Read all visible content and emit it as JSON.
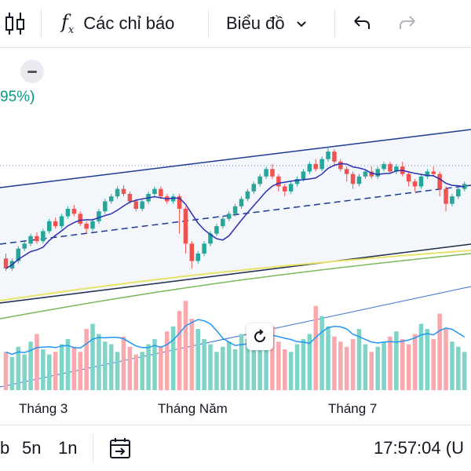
{
  "toolbar": {
    "indicators_label": "Các chỉ báo",
    "chart_type_label": "Biểu đồ"
  },
  "chart": {
    "percent_label": "95%)",
    "x_labels": [
      "Tháng 3",
      "Tháng Năm",
      "Tháng 7"
    ]
  },
  "bottom": {
    "range_partial": "b",
    "range_5y": "5n",
    "range_1y": "1n",
    "clock": "17:57:04 (U"
  },
  "colors": {
    "up": "#26a69a",
    "down": "#ef5350",
    "channel": "#1f3a93",
    "ma": "#2c2fb0",
    "vol_up": "#7fd4c8",
    "vol_down": "#f7a9ae",
    "vol_ma": "#2196f3"
  },
  "chart_data": {
    "type": "candlestick",
    "candles": [
      [
        100,
        92,
        104,
        90
      ],
      [
        92,
        98,
        100,
        90
      ],
      [
        98,
        108,
        110,
        96
      ],
      [
        108,
        112,
        114,
        106
      ],
      [
        112,
        118,
        120,
        110
      ],
      [
        118,
        114,
        121,
        112
      ],
      [
        114,
        122,
        124,
        112
      ],
      [
        122,
        130,
        132,
        120
      ],
      [
        130,
        126,
        133,
        124
      ],
      [
        126,
        134,
        136,
        124
      ],
      [
        134,
        140,
        142,
        132
      ],
      [
        140,
        136,
        143,
        134
      ],
      [
        136,
        128,
        138,
        126
      ],
      [
        128,
        124,
        130,
        120
      ],
      [
        124,
        130,
        132,
        122
      ],
      [
        130,
        138,
        140,
        128
      ],
      [
        138,
        146,
        148,
        136
      ],
      [
        146,
        150,
        152,
        144
      ],
      [
        150,
        156,
        158,
        148
      ],
      [
        156,
        152,
        159,
        150
      ],
      [
        152,
        146,
        154,
        144
      ],
      [
        146,
        140,
        148,
        138
      ],
      [
        140,
        146,
        148,
        138
      ],
      [
        146,
        152,
        154,
        144
      ],
      [
        152,
        156,
        158,
        150
      ],
      [
        156,
        150,
        158,
        148
      ],
      [
        150,
        146,
        152,
        144
      ],
      [
        146,
        150,
        152,
        144
      ],
      [
        150,
        140,
        152,
        120
      ],
      [
        140,
        112,
        142,
        104
      ],
      [
        112,
        98,
        114,
        92
      ],
      [
        98,
        104,
        106,
        96
      ],
      [
        104,
        112,
        114,
        102
      ],
      [
        112,
        120,
        122,
        110
      ],
      [
        120,
        126,
        128,
        118
      ],
      [
        126,
        132,
        134,
        124
      ],
      [
        132,
        136,
        138,
        130
      ],
      [
        136,
        142,
        144,
        134
      ],
      [
        142,
        148,
        150,
        140
      ],
      [
        148,
        154,
        156,
        146
      ],
      [
        154,
        160,
        162,
        152
      ],
      [
        160,
        166,
        168,
        158
      ],
      [
        166,
        172,
        174,
        164
      ],
      [
        172,
        166,
        176,
        164
      ],
      [
        166,
        158,
        168,
        154
      ],
      [
        158,
        154,
        160,
        150
      ],
      [
        154,
        160,
        162,
        152
      ],
      [
        160,
        164,
        166,
        158
      ],
      [
        164,
        170,
        172,
        162
      ],
      [
        170,
        176,
        178,
        168
      ],
      [
        176,
        172,
        180,
        170
      ],
      [
        172,
        180,
        182,
        170
      ],
      [
        180,
        186,
        190,
        178
      ],
      [
        186,
        178,
        188,
        174
      ],
      [
        178,
        172,
        180,
        170
      ],
      [
        172,
        168,
        174,
        162
      ],
      [
        168,
        160,
        170,
        156
      ],
      [
        160,
        166,
        168,
        158
      ],
      [
        166,
        170,
        172,
        164
      ],
      [
        170,
        166,
        174,
        164
      ],
      [
        166,
        172,
        174,
        164
      ],
      [
        172,
        176,
        178,
        170
      ],
      [
        176,
        170,
        178,
        168
      ],
      [
        170,
        174,
        176,
        168
      ],
      [
        174,
        168,
        178,
        166
      ],
      [
        168,
        162,
        170,
        158
      ],
      [
        162,
        158,
        164,
        154
      ],
      [
        158,
        166,
        168,
        156
      ],
      [
        166,
        170,
        172,
        164
      ],
      [
        170,
        168,
        174,
        166
      ],
      [
        168,
        156,
        170,
        150
      ],
      [
        156,
        144,
        158,
        138
      ],
      [
        144,
        150,
        152,
        142
      ],
      [
        150,
        156,
        158,
        148
      ],
      [
        156,
        160,
        162,
        154
      ]
    ],
    "volumes": [
      30,
      26,
      34,
      28,
      38,
      44,
      32,
      28,
      30,
      36,
      40,
      34,
      30,
      48,
      52,
      44,
      38,
      36,
      30,
      42,
      34,
      28,
      30,
      36,
      40,
      34,
      46,
      50,
      62,
      70,
      56,
      48,
      40,
      36,
      30,
      34,
      38,
      32,
      44,
      40,
      36,
      46,
      42,
      50,
      38,
      32,
      30,
      36,
      40,
      44,
      66,
      58,
      50,
      42,
      38,
      34,
      40,
      48,
      36,
      30,
      34,
      38,
      42,
      46,
      40,
      36,
      44,
      52,
      48,
      40,
      60,
      48,
      38,
      34,
      30
    ]
  }
}
